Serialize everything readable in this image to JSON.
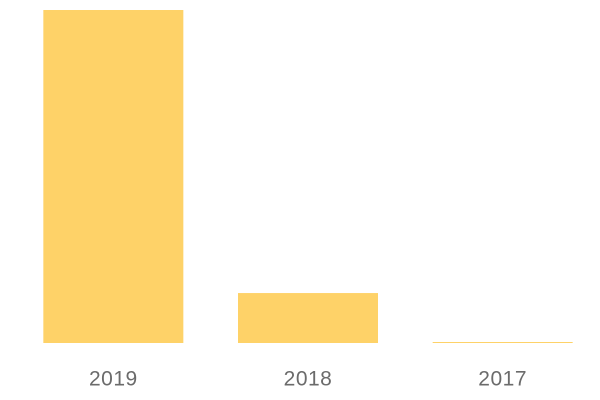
{
  "chart_data": {
    "type": "bar",
    "categories": [
      "2019",
      "2018",
      "2017"
    ],
    "values": [
      100,
      15,
      0.3
    ],
    "color": "#fed268"
  }
}
